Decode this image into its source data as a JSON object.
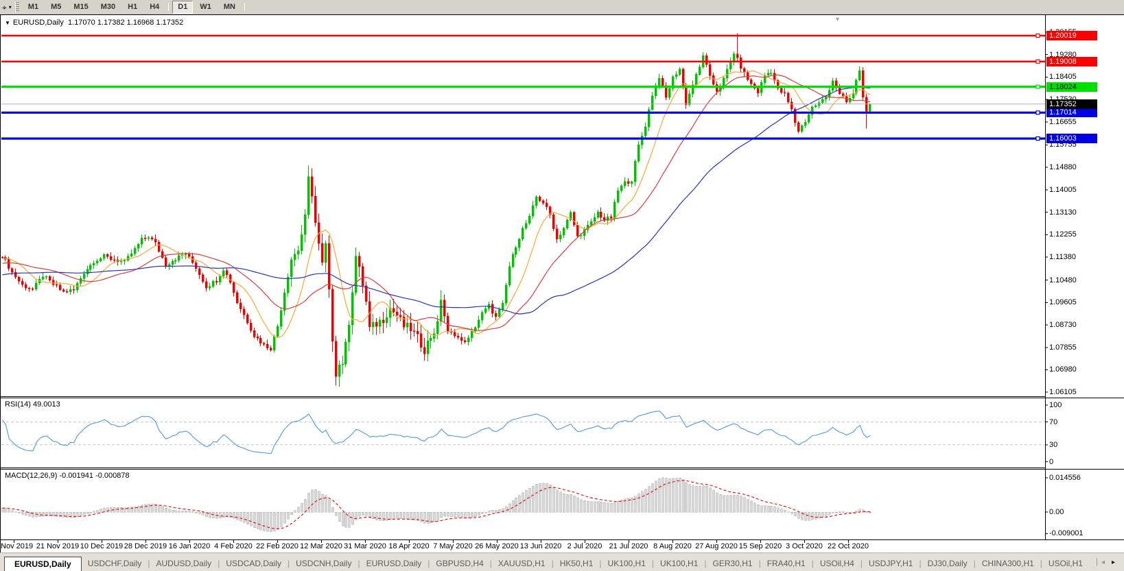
{
  "toolbar": {
    "tool_icon": "crosshair-tool",
    "timeframes": [
      "M1",
      "M5",
      "M15",
      "M30",
      "H1",
      "H4",
      "D1",
      "W1",
      "MN"
    ],
    "active_timeframe": "D1"
  },
  "chart_data": {
    "type": "candlestick",
    "title": "EURUSD,Daily",
    "ohlc_text": "1.17070 1.17382 1.16968 1.17352",
    "symbol": "EURUSD",
    "timeframe": "Daily",
    "num_candles": 256,
    "ylim": [
      1.05977,
      1.20794
    ],
    "y_ticks": [
      "1.20155",
      "1.19280",
      "1.18405",
      "1.17530",
      "1.16655",
      "1.15755",
      "1.14880",
      "1.14005",
      "1.13130",
      "1.12255",
      "1.11380",
      "1.10480",
      "1.09605",
      "1.08730",
      "1.07855",
      "1.06980",
      "1.06105"
    ],
    "x_labels": [
      "2 Nov 2019",
      "21 Nov 2019",
      "10 Dec 2019",
      "28 Dec 2019",
      "16 Jan 2020",
      "4 Feb 2020",
      "22 Feb 2020",
      "12 Mar 2020",
      "31 Mar 2020",
      "18 Apr 2020",
      "7 May 2020",
      "26 May 2020",
      "13 Jun 2020",
      "2 Jul 2020",
      "21 Jul 2020",
      "8 Aug 2020",
      "27 Aug 2020",
      "15 Sep 2020",
      "3 Oct 2020",
      "22 Oct 2020"
    ],
    "anchors": [
      [
        0,
        1.1145
      ],
      [
        3,
        1.1078
      ],
      [
        6,
        1.1028
      ],
      [
        9,
        1.1012
      ],
      [
        12,
        1.1065
      ],
      [
        15,
        1.1032
      ],
      [
        18,
        1.1002
      ],
      [
        21,
        1.101
      ],
      [
        24,
        1.1078
      ],
      [
        27,
        1.1122
      ],
      [
        30,
        1.114
      ],
      [
        33,
        1.1128
      ],
      [
        36,
        1.1118
      ],
      [
        39,
        1.1168
      ],
      [
        41,
        1.1205
      ],
      [
        43,
        1.1218
      ],
      [
        45,
        1.1192
      ],
      [
        48,
        1.1108
      ],
      [
        51,
        1.1132
      ],
      [
        54,
        1.1152
      ],
      [
        57,
        1.1098
      ],
      [
        60,
        1.1022
      ],
      [
        63,
        1.1048
      ],
      [
        65,
        1.1092
      ],
      [
        67,
        1.1042
      ],
      [
        69,
        1.0962
      ],
      [
        71,
        1.0912
      ],
      [
        74,
        1.0832
      ],
      [
        77,
        1.0795
      ],
      [
        79,
        1.0782
      ],
      [
        81,
        1.0868
      ],
      [
        83,
        1.1002
      ],
      [
        85,
        1.1132
      ],
      [
        87,
        1.1168
      ],
      [
        89,
        1.1288
      ],
      [
        90,
        1.144
      ],
      [
        91,
        1.1388
      ],
      [
        92,
        1.1272
      ],
      [
        93,
        1.1182
      ],
      [
        94,
        1.1108
      ],
      [
        95,
        1.1182
      ],
      [
        96,
        1.0998
      ],
      [
        97,
        1.0822
      ],
      [
        98,
        1.0688
      ],
      [
        99,
        1.0718
      ],
      [
        100,
        1.0728
      ],
      [
        101,
        1.0792
      ],
      [
        102,
        1.0888
      ],
      [
        103,
        1.1012
      ],
      [
        104,
        1.1142
      ],
      [
        105,
        1.1088
      ],
      [
        106,
        1.1032
      ],
      [
        107,
        1.0962
      ],
      [
        108,
        1.0858
      ],
      [
        110,
        1.0878
      ],
      [
        112,
        1.0898
      ],
      [
        114,
        1.0938
      ],
      [
        116,
        1.0912
      ],
      [
        118,
        1.0868
      ],
      [
        120,
        1.0858
      ],
      [
        122,
        1.0822
      ],
      [
        124,
        1.0778
      ],
      [
        126,
        1.0828
      ],
      [
        128,
        1.0872
      ],
      [
        129,
        1.0978
      ],
      [
        131,
        1.0842
      ],
      [
        133,
        1.0838
      ],
      [
        135,
        1.0808
      ],
      [
        137,
        1.0818
      ],
      [
        139,
        1.0868
      ],
      [
        141,
        1.0918
      ],
      [
        143,
        1.0948
      ],
      [
        145,
        1.0902
      ],
      [
        147,
        1.0952
      ],
      [
        149,
        1.1102
      ],
      [
        151,
        1.1182
      ],
      [
        153,
        1.1248
      ],
      [
        155,
        1.1292
      ],
      [
        157,
        1.1372
      ],
      [
        159,
        1.1352
      ],
      [
        161,
        1.1302
      ],
      [
        163,
        1.1208
      ],
      [
        165,
        1.1252
      ],
      [
        167,
        1.1308
      ],
      [
        169,
        1.1218
      ],
      [
        171,
        1.1242
      ],
      [
        173,
        1.1272
      ],
      [
        175,
        1.1312
      ],
      [
        177,
        1.1282
      ],
      [
        179,
        1.1292
      ],
      [
        181,
        1.1398
      ],
      [
        183,
        1.1428
      ],
      [
        185,
        1.1438
      ],
      [
        187,
        1.1572
      ],
      [
        189,
        1.1652
      ],
      [
        191,
        1.1772
      ],
      [
        193,
        1.1842
      ],
      [
        195,
        1.1758
      ],
      [
        197,
        1.1838
      ],
      [
        199,
        1.1872
      ],
      [
        201,
        1.1738
      ],
      [
        203,
        1.1812
      ],
      [
        205,
        1.1878
      ],
      [
        206,
        1.1928
      ],
      [
        208,
        1.1838
      ],
      [
        210,
        1.1788
      ],
      [
        212,
        1.1832
      ],
      [
        214,
        1.1902
      ],
      [
        215,
        1.1935
      ],
      [
        216,
        1.1908
      ],
      [
        218,
        1.1852
      ],
      [
        220,
        1.1812
      ],
      [
        222,
        1.1782
      ],
      [
        224,
        1.1848
      ],
      [
        226,
        1.1862
      ],
      [
        228,
        1.1792
      ],
      [
        230,
        1.1772
      ],
      [
        232,
        1.1712
      ],
      [
        233,
        1.1665
      ],
      [
        234,
        1.1631
      ],
      [
        236,
        1.1668
      ],
      [
        238,
        1.1722
      ],
      [
        240,
        1.1738
      ],
      [
        242,
        1.1762
      ],
      [
        244,
        1.1828
      ],
      [
        246,
        1.1772
      ],
      [
        248,
        1.1742
      ],
      [
        250,
        1.1772
      ],
      [
        251,
        1.1832
      ],
      [
        252,
        1.1862
      ],
      [
        253,
        1.1762
      ],
      [
        254,
        1.1707
      ],
      [
        255,
        1.17352
      ]
    ],
    "forced_extremes": [
      {
        "i": 90,
        "high": 1.1495
      },
      {
        "i": 98,
        "low": 1.0636
      },
      {
        "i": 216,
        "high": 1.2011
      },
      {
        "i": 254,
        "low": 1.164
      }
    ],
    "last_candle": {
      "open": 1.1707,
      "high": 1.17382,
      "low": 1.16968,
      "close": 1.17352
    },
    "current_price": {
      "value": 1.17352,
      "label": "1.17352",
      "line_color": "#b0b0b0",
      "badge_bg": "#000000",
      "badge_fg": "#ffffff"
    },
    "hlines": [
      {
        "price": 1.20019,
        "label": "1.20019",
        "color": "#fe0000",
        "width": 2.5,
        "badge_bg": "#fe0000",
        "badge_fg": "#ffffff"
      },
      {
        "price": 1.19008,
        "label": "1.19008",
        "color": "#fe0000",
        "width": 2.5,
        "badge_bg": "#fe0000",
        "badge_fg": "#ffffff"
      },
      {
        "price": 1.18024,
        "label": "1.18024",
        "color": "#00e000",
        "width": 3.2,
        "badge_bg": "#00e000",
        "badge_fg": "#000000"
      },
      {
        "price": 1.17014,
        "label": "1.17014",
        "color": "#0000e8",
        "width": 3.2,
        "badge_bg": "#0000e8",
        "badge_fg": "#ffffff"
      },
      {
        "price": 1.16003,
        "label": "1.16003",
        "color": "#0000e8",
        "width": 3.2,
        "badge_bg": "#0000e8",
        "badge_fg": "#ffffff"
      }
    ],
    "moving_averages": [
      {
        "period": 10,
        "color": "#ffa733",
        "name": "MA-fast-orange"
      },
      {
        "period": 25,
        "color": "#dc3c3c",
        "name": "MA-mid-red"
      },
      {
        "period": 60,
        "color": "#2333c0",
        "name": "MA-slow-blue"
      }
    ],
    "candle_up_color": "#00c400",
    "candle_down_color": "#ed0000",
    "rsi": {
      "label": "RSI(14) 49.0013",
      "period": 14,
      "line_color": "#4f9bd9",
      "levels": [
        70,
        30
      ],
      "y_ticks": [
        "100",
        "70",
        "30",
        "0"
      ],
      "y_tick_values": [
        100,
        70,
        30,
        0
      ],
      "ylim": [
        -9,
        112
      ]
    },
    "macd": {
      "label": "MACD(12,26,9) -0.001941 -0.000878",
      "fast": 12,
      "slow": 26,
      "signal": 9,
      "bar_color": "#d8d8d8",
      "bar_stroke": "#9b9b9b",
      "signal_color": "#ee0000",
      "y_ticks": [
        "0.014556",
        "0.00",
        "-0.009001"
      ],
      "y_tick_values": [
        0.014556,
        0,
        -0.009001
      ],
      "ylim": [
        -0.0115,
        0.018
      ]
    }
  },
  "tabs": {
    "items": [
      {
        "label": "EURUSD,Daily",
        "active": true
      },
      {
        "label": "USDCHF,Daily",
        "active": false
      },
      {
        "label": "AUDUSD,Daily",
        "active": false
      },
      {
        "label": "USDCAD,Daily",
        "active": false
      },
      {
        "label": "USDCNH,Daily",
        "active": false
      },
      {
        "label": "EURUSD,Daily",
        "active": false
      },
      {
        "label": "GBPUSD,H4",
        "active": false
      },
      {
        "label": "XAUUSD,H1",
        "active": false
      },
      {
        "label": "HK50,H1",
        "active": false
      },
      {
        "label": "UK100,H1",
        "active": false
      },
      {
        "label": "UK100,H1",
        "active": false
      },
      {
        "label": "GER30,H1",
        "active": false
      },
      {
        "label": "FRA40,H1",
        "active": false
      },
      {
        "label": "USOil,H4",
        "active": false
      },
      {
        "label": "USDJPY,H1",
        "active": false
      },
      {
        "label": "DJ30,Daily",
        "active": false
      },
      {
        "label": "CHINA300,H1",
        "active": false
      },
      {
        "label": "USOil,H1",
        "active": false
      }
    ],
    "scroll_left": "◂",
    "scroll_right": "▸"
  }
}
